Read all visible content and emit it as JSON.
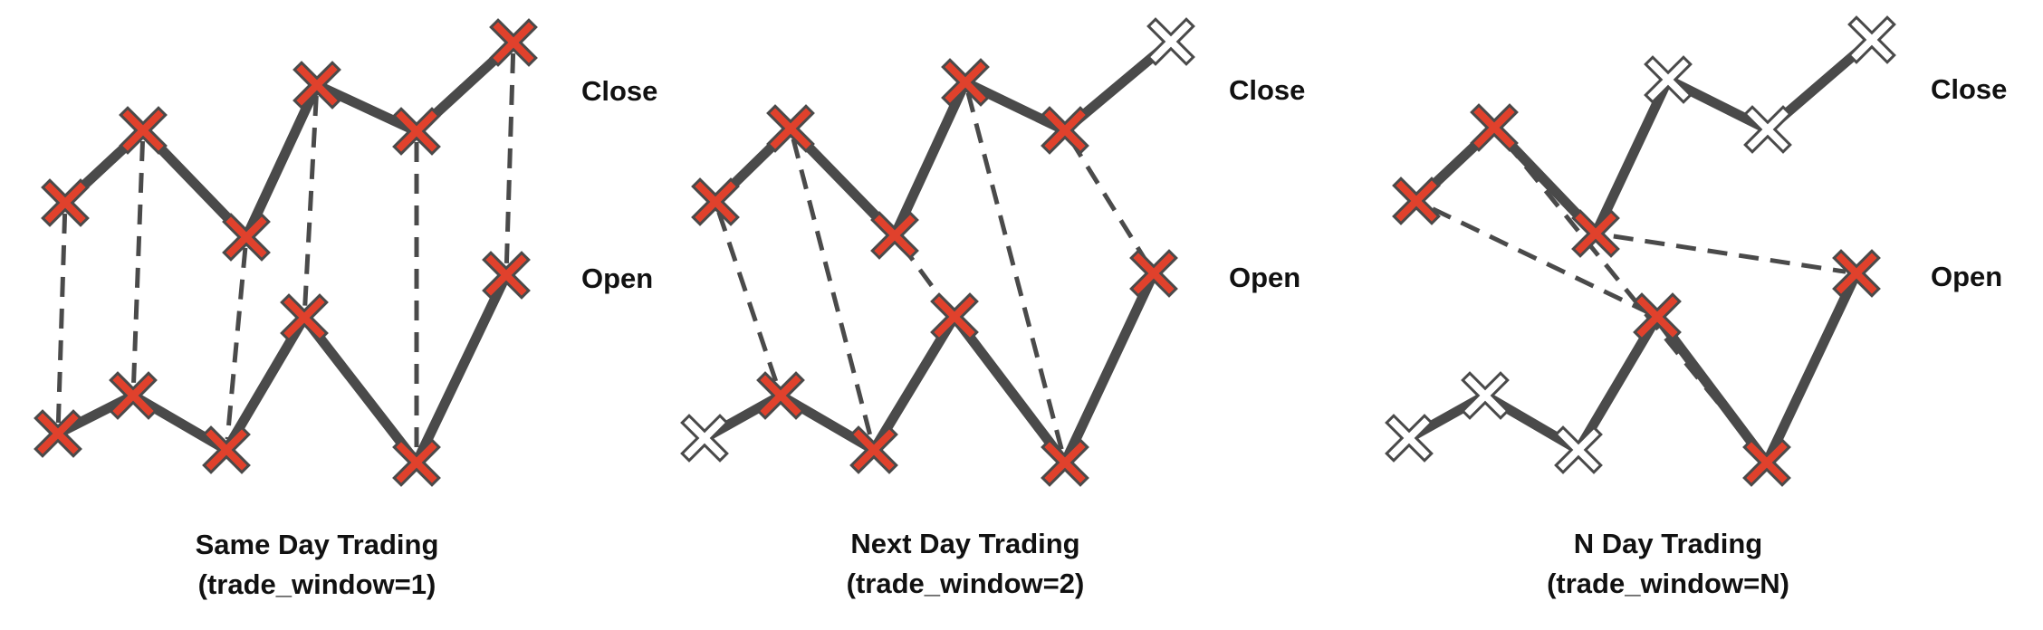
{
  "colors": {
    "line": "#4a4a4a",
    "active_marker": "#e0412c",
    "inactive_marker": "#ffffff",
    "marker_outline": "#4a4a4a",
    "text": "#111111"
  },
  "icons": {
    "active_marker": "x-cross-icon (red)",
    "inactive_marker": "x-cross-icon (white)"
  },
  "row_labels": {
    "close": "Close",
    "open": "Open"
  },
  "panels": [
    {
      "id": "same-day",
      "title": "Same Day Trading",
      "subtitle": "(trade_window=1)",
      "close_active": [
        true,
        true,
        true,
        true,
        true,
        true
      ],
      "open_active": [
        true,
        true,
        true,
        true,
        true,
        true
      ],
      "links": [
        [
          0,
          0
        ],
        [
          1,
          1
        ],
        [
          2,
          2
        ],
        [
          3,
          3
        ],
        [
          4,
          4
        ],
        [
          5,
          5
        ]
      ]
    },
    {
      "id": "next-day",
      "title": "Next Day Trading",
      "subtitle": "(trade_window=2)",
      "close_active": [
        true,
        true,
        true,
        true,
        true,
        false
      ],
      "open_active": [
        false,
        true,
        true,
        true,
        true,
        true
      ],
      "links": [
        [
          0,
          1
        ],
        [
          1,
          2
        ],
        [
          2,
          3
        ],
        [
          3,
          4
        ],
        [
          4,
          5
        ]
      ]
    },
    {
      "id": "n-day",
      "title": "N Day Trading",
      "subtitle": "(trade_window=N)",
      "close_active": [
        true,
        true,
        true,
        false,
        false,
        false
      ],
      "open_active": [
        false,
        false,
        false,
        true,
        true,
        true
      ],
      "links": [
        [
          0,
          3
        ],
        [
          1,
          4
        ],
        [
          2,
          5
        ]
      ]
    }
  ]
}
